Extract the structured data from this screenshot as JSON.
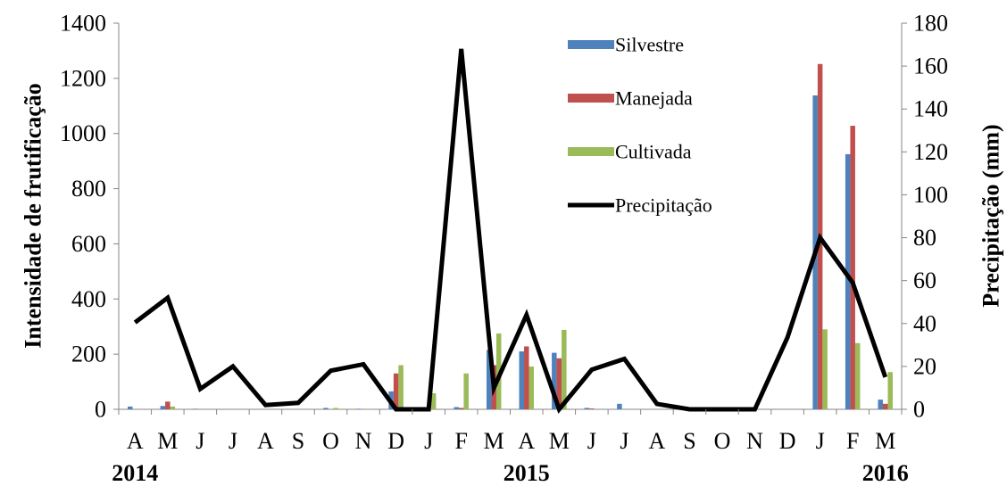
{
  "chart_data": {
    "type": "bar",
    "categories": [
      "A",
      "M",
      "J",
      "J",
      "A",
      "S",
      "O",
      "N",
      "D",
      "J",
      "F",
      "M",
      "A",
      "M",
      "J",
      "J",
      "A",
      "S",
      "O",
      "N",
      "D",
      "J",
      "F",
      "M"
    ],
    "year_labels": [
      {
        "label": "2014",
        "category_index": 0
      },
      {
        "label": "2015",
        "category_index": 12
      },
      {
        "label": "2016",
        "category_index": 23
      }
    ],
    "ylabel": "Intensidade de frutificação",
    "y2label": "Precipitação (mm)",
    "ylim": [
      0,
      1400
    ],
    "yticks": [
      0,
      200,
      400,
      600,
      800,
      1000,
      1200,
      1400
    ],
    "y2lim": [
      0,
      180
    ],
    "y2ticks": [
      0,
      20,
      40,
      60,
      80,
      100,
      120,
      140,
      160,
      180
    ],
    "grid": false,
    "legend_position": "top-right",
    "series": [
      {
        "name": "Silvestre",
        "type": "bar",
        "axis": "left",
        "color": "#4F81BD",
        "values": [
          10,
          12,
          2,
          0,
          0,
          0,
          5,
          2,
          65,
          0,
          8,
          215,
          210,
          205,
          5,
          20,
          0,
          0,
          0,
          0,
          0,
          1138,
          925,
          35
        ]
      },
      {
        "name": "Manejada",
        "type": "bar",
        "axis": "left",
        "color": "#C0504D",
        "values": [
          0,
          28,
          0,
          0,
          0,
          0,
          0,
          0,
          130,
          0,
          5,
          160,
          228,
          185,
          3,
          0,
          0,
          0,
          0,
          0,
          0,
          1252,
          1028,
          20
        ]
      },
      {
        "name": "Cultivada",
        "type": "bar",
        "axis": "left",
        "color": "#9BBB59",
        "values": [
          0,
          10,
          0,
          0,
          0,
          0,
          5,
          2,
          160,
          58,
          130,
          275,
          155,
          288,
          0,
          0,
          0,
          0,
          0,
          0,
          0,
          290,
          240,
          135
        ]
      },
      {
        "name": "Precipitação",
        "type": "line",
        "axis": "right",
        "color": "#000000",
        "values": [
          40.5,
          52,
          9.5,
          20,
          2,
          3,
          18,
          21,
          0,
          0,
          168,
          10,
          44,
          0,
          18.5,
          23.5,
          2.5,
          0,
          0,
          0,
          33.5,
          80,
          59,
          15
        ]
      }
    ]
  }
}
